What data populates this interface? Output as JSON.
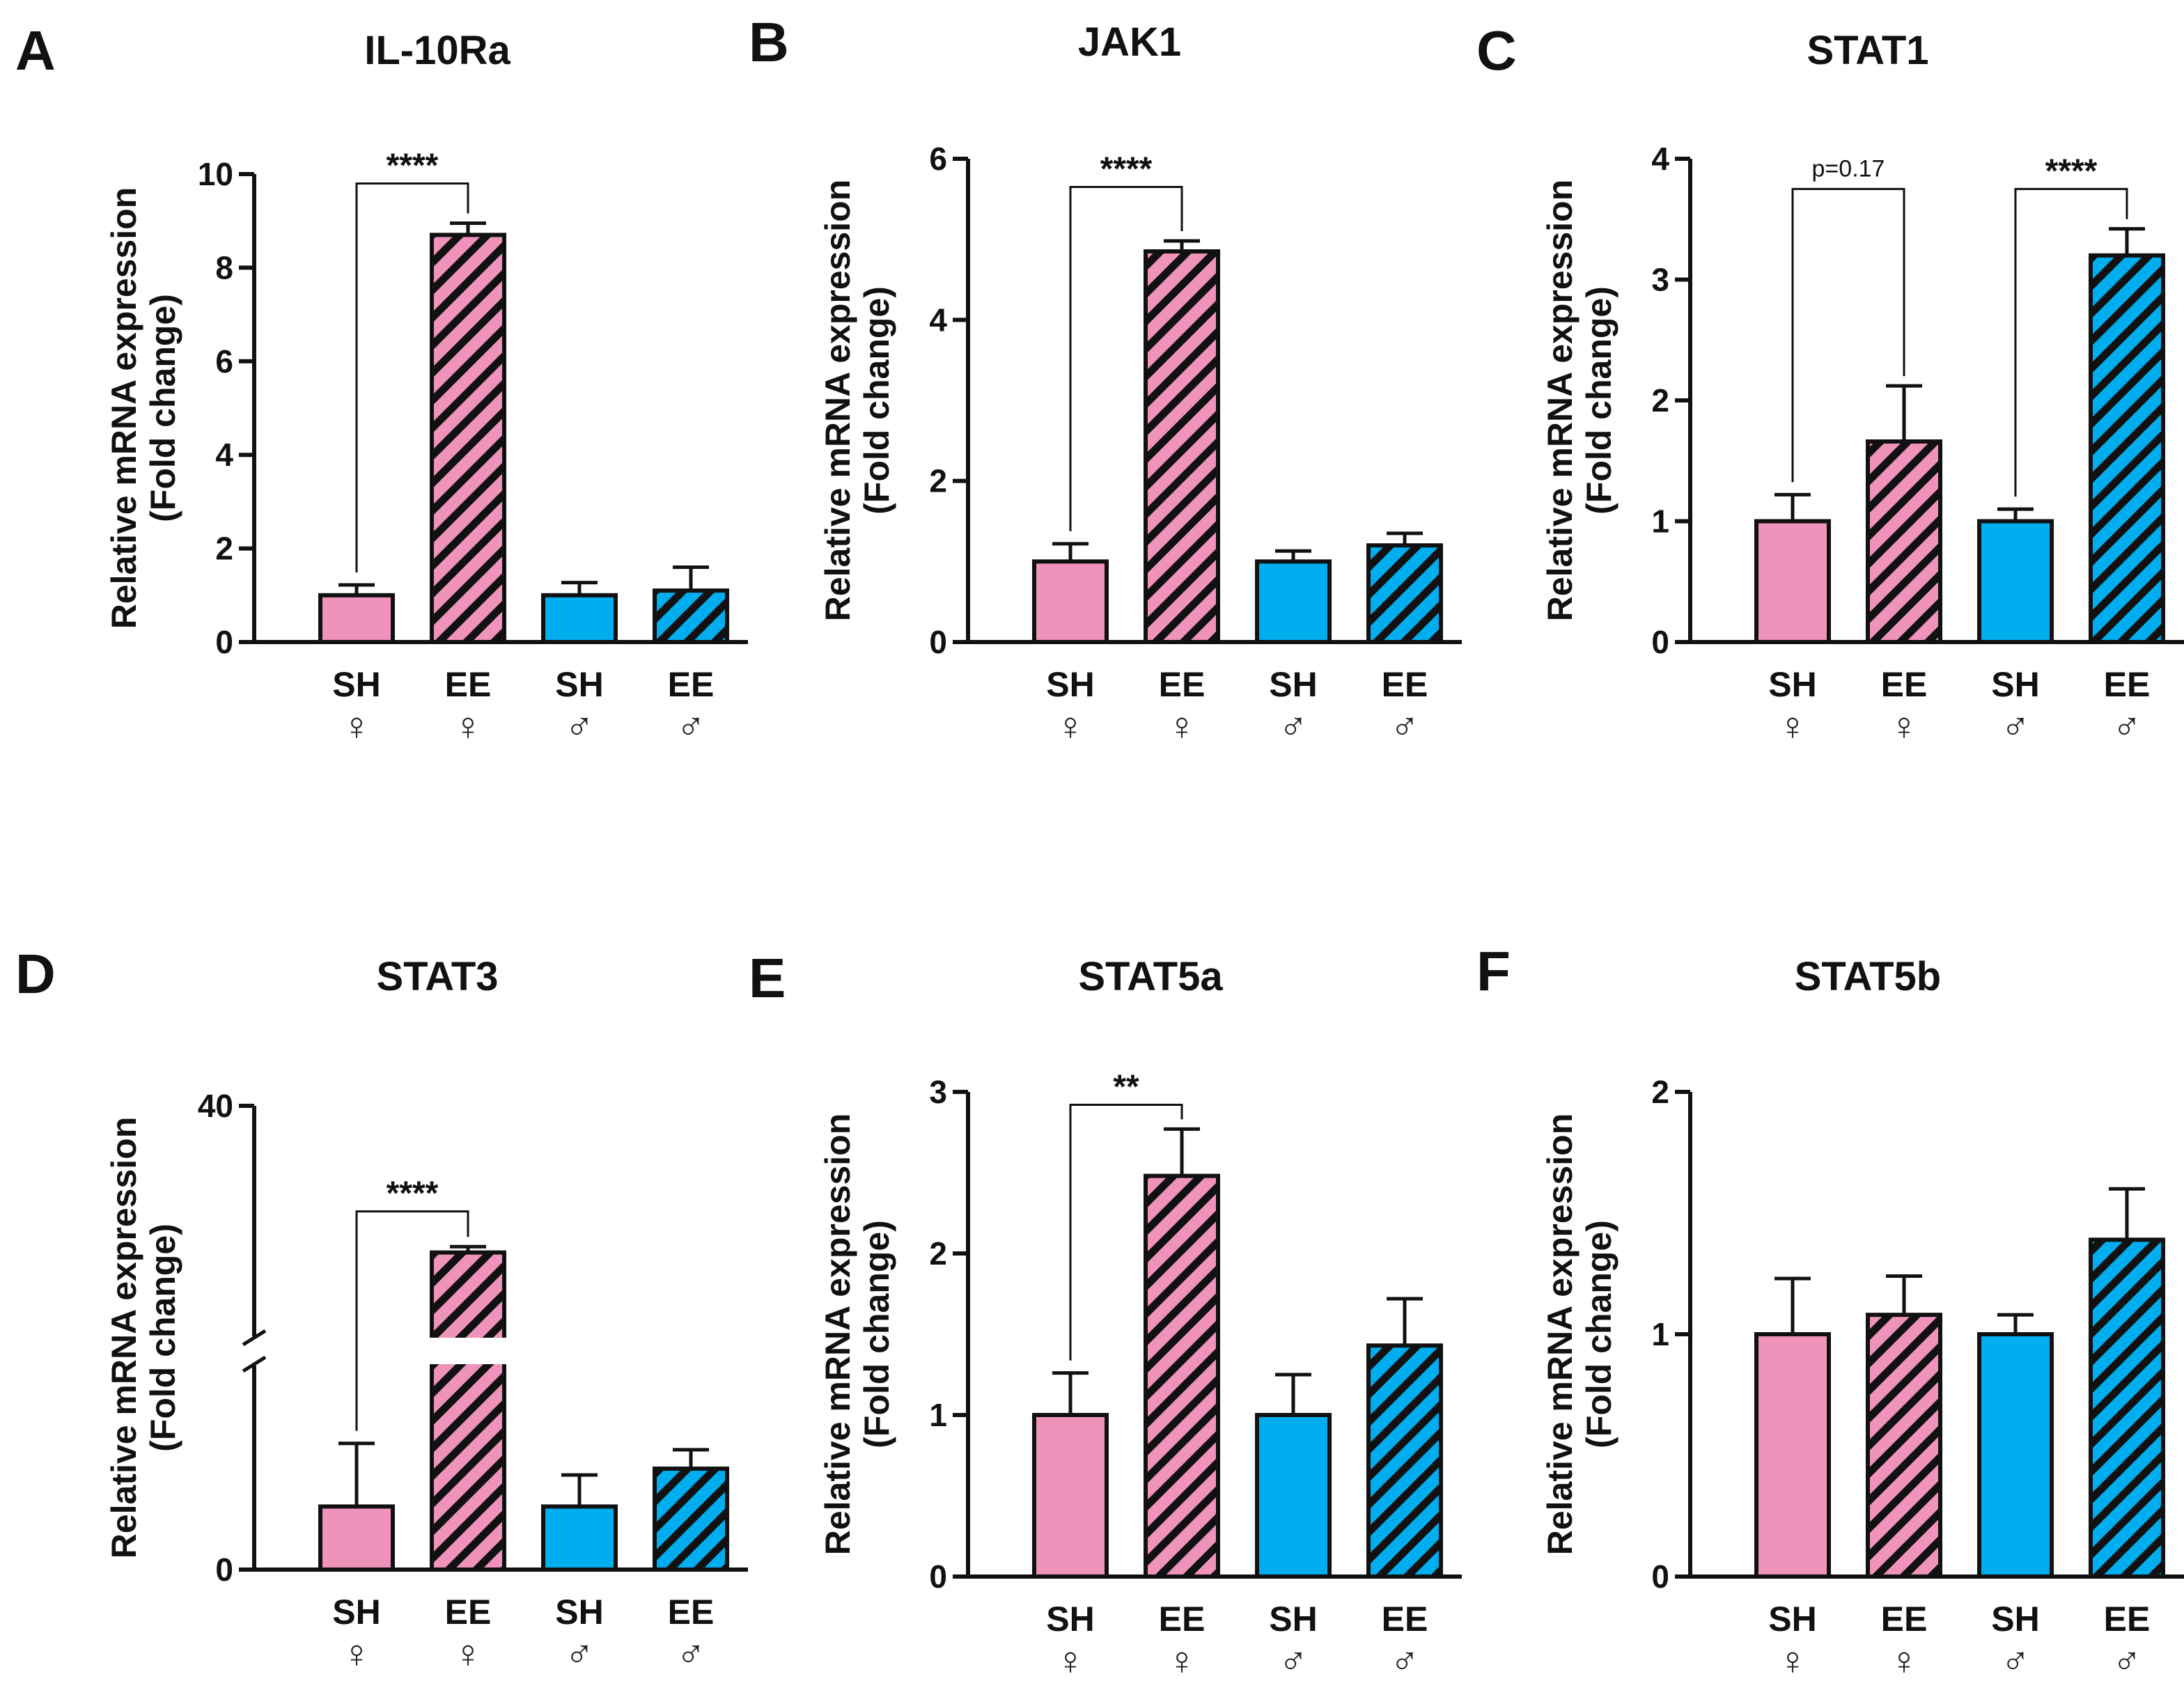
{
  "figure": {
    "colors": {
      "female": "#EF93BB",
      "male": "#00AEEF",
      "outline": "#111111",
      "hatch": "#111111"
    },
    "group_labels": [
      "SH",
      "EE",
      "SH",
      "EE"
    ],
    "sex_labels": [
      "♀",
      "♀",
      "♂",
      "♂"
    ],
    "group_sex": [
      "female",
      "female",
      "male",
      "male"
    ],
    "group_hatched": [
      false,
      true,
      false,
      true
    ],
    "ylabel_line1": "Relative mRNA expression",
    "ylabel_line2": "(Fold change)"
  },
  "chart_data": [
    {
      "panel": "A",
      "type": "bar",
      "title": "IL-10Ra",
      "xlabel": "",
      "ylabel": "Relative mRNA expression (Fold change)",
      "categories": [
        "SH ♀",
        "EE ♀",
        "SH ♂",
        "EE ♂"
      ],
      "values": [
        1.0,
        8.7,
        1.0,
        1.1
      ],
      "errors": [
        0.22,
        0.25,
        0.27,
        0.5
      ],
      "ylim": [
        0,
        10
      ],
      "yticks": [
        0,
        2,
        4,
        6,
        8,
        10
      ],
      "ytick_labels": [
        "0",
        "2",
        "4",
        "6",
        "8",
        "10"
      ],
      "significance": [
        {
          "from": 0,
          "to": 1,
          "label": "****",
          "y": 9.8
        }
      ]
    },
    {
      "panel": "B",
      "type": "bar",
      "title": "JAK1",
      "xlabel": "",
      "ylabel": "Relative mRNA expression (Fold change)",
      "categories": [
        "SH ♀",
        "EE ♀",
        "SH ♂",
        "EE ♂"
      ],
      "values": [
        1.0,
        4.85,
        1.0,
        1.2
      ],
      "errors": [
        0.22,
        0.13,
        0.13,
        0.15
      ],
      "ylim": [
        0,
        6
      ],
      "yticks": [
        0,
        2,
        4,
        6
      ],
      "ytick_labels": [
        "0",
        "2",
        "4",
        "6"
      ],
      "significance": [
        {
          "from": 0,
          "to": 1,
          "label": "****",
          "y": 5.65
        }
      ]
    },
    {
      "panel": "C",
      "type": "bar",
      "title": "STAT1",
      "xlabel": "",
      "ylabel": "Relative mRNA expression (Fold change)",
      "categories": [
        "SH ♀",
        "EE ♀",
        "SH ♂",
        "EE ♂"
      ],
      "values": [
        1.0,
        1.66,
        1.0,
        3.2
      ],
      "errors": [
        0.22,
        0.46,
        0.1,
        0.22
      ],
      "ylim": [
        0,
        4
      ],
      "yticks": [
        0,
        1,
        2,
        3,
        4
      ],
      "ytick_labels": [
        "0",
        "1",
        "2",
        "3",
        "4"
      ],
      "significance": [
        {
          "from": 0,
          "to": 1,
          "label": "p=0.17",
          "y": 3.75
        },
        {
          "from": 2,
          "to": 3,
          "label": "****",
          "y": 3.75
        }
      ]
    },
    {
      "panel": "D",
      "type": "bar",
      "title": "STAT3",
      "xlabel": "",
      "ylabel": "Relative mRNA expression (Fold change)",
      "categories": [
        "SH ♀",
        "EE ♀",
        "SH ♂",
        "EE ♂"
      ],
      "values": [
        1.0,
        27.5,
        1.0,
        1.6
      ],
      "errors": [
        1.0,
        0.5,
        0.5,
        0.3
      ],
      "ylim": [
        0,
        40
      ],
      "yticks": [
        0,
        40
      ],
      "ytick_labels": [
        "0",
        "40"
      ],
      "axis_break": true,
      "significance": [
        {
          "from": 0,
          "to": 1,
          "label": "****",
          "y": 31
        }
      ]
    },
    {
      "panel": "E",
      "type": "bar",
      "title": "STAT5a",
      "xlabel": "",
      "ylabel": "Relative mRNA expression (Fold change)",
      "categories": [
        "SH ♀",
        "EE ♀",
        "SH ♂",
        "EE ♂"
      ],
      "values": [
        1.0,
        2.48,
        1.0,
        1.43
      ],
      "errors": [
        0.26,
        0.29,
        0.25,
        0.29
      ],
      "ylim": [
        0,
        3
      ],
      "yticks": [
        0,
        1,
        2,
        3
      ],
      "ytick_labels": [
        "0",
        "1",
        "2",
        "3"
      ],
      "significance": [
        {
          "from": 0,
          "to": 1,
          "label": "**",
          "y": 2.92
        }
      ]
    },
    {
      "panel": "F",
      "type": "bar",
      "title": "STAT5b",
      "xlabel": "",
      "ylabel": "Relative mRNA expression (Fold change)",
      "categories": [
        "SH ♀",
        "EE ♀",
        "SH ♂",
        "EE ♂"
      ],
      "values": [
        1.0,
        1.08,
        1.0,
        1.39
      ],
      "errors": [
        0.23,
        0.16,
        0.08,
        0.21
      ],
      "ylim": [
        0,
        2
      ],
      "yticks": [
        0,
        1,
        2
      ],
      "ytick_labels": [
        "0",
        "1",
        "2"
      ],
      "significance": []
    }
  ]
}
